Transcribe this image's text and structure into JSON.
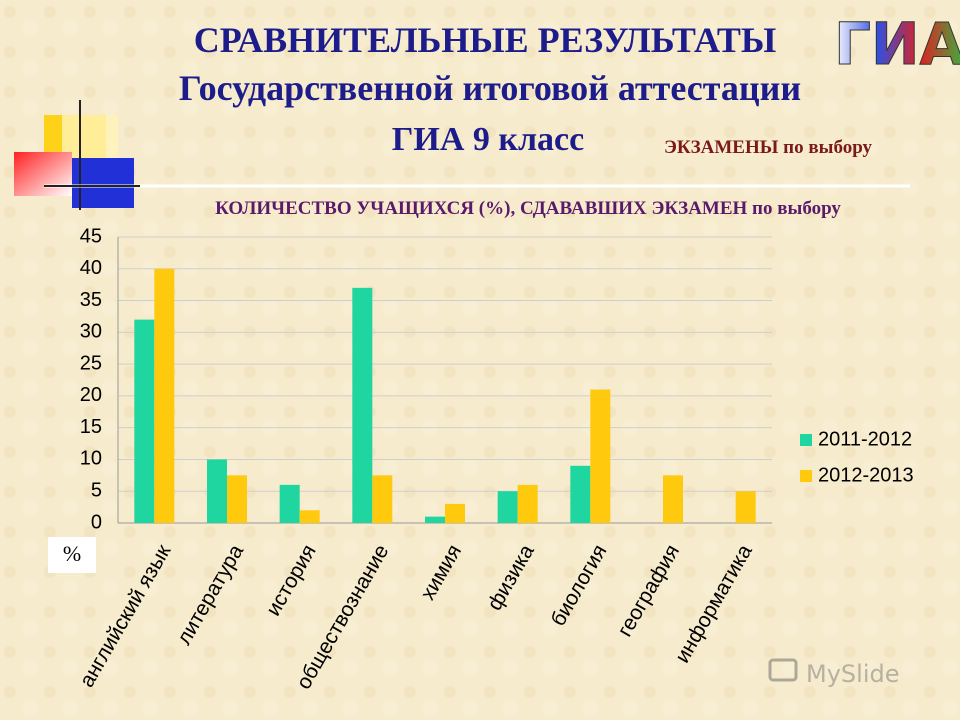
{
  "logo": "ГИА",
  "watermark": "MySlide",
  "chart_data": {
    "type": "bar",
    "title": "СРАВНИТЕЛЬНЫЕ РЕЗУЛЬТАТЫ",
    "title_line2": "Государственной итоговой аттестации",
    "title_line3": "ГИА  9 класс",
    "title_note": "ЭКЗАМЕНЫ  по выбору",
    "subtitle": "КОЛИЧЕСТВО  УЧАЩИХСЯ (%),  СДАВАВШИХ  ЭКЗАМЕН  по выбору",
    "y_label": "%",
    "categories": [
      "английский язык",
      "литература",
      "история",
      "обществознание",
      "химия",
      "физика",
      "биология",
      "география",
      "информатика"
    ],
    "series": [
      {
        "name": "2011-2012",
        "color": "#1fd6a0",
        "values": [
          32,
          10,
          6,
          37,
          1,
          5,
          9,
          null,
          null
        ]
      },
      {
        "name": "2012-2013",
        "color": "#ffc90e",
        "values": [
          40,
          7.5,
          2,
          7.5,
          3,
          6,
          21,
          7.5,
          5
        ]
      }
    ],
    "ylim": [
      0,
      45
    ],
    "yticks": [
      0,
      5,
      10,
      15,
      20,
      25,
      30,
      35,
      40,
      45
    ],
    "grid": true,
    "legend": "right"
  }
}
